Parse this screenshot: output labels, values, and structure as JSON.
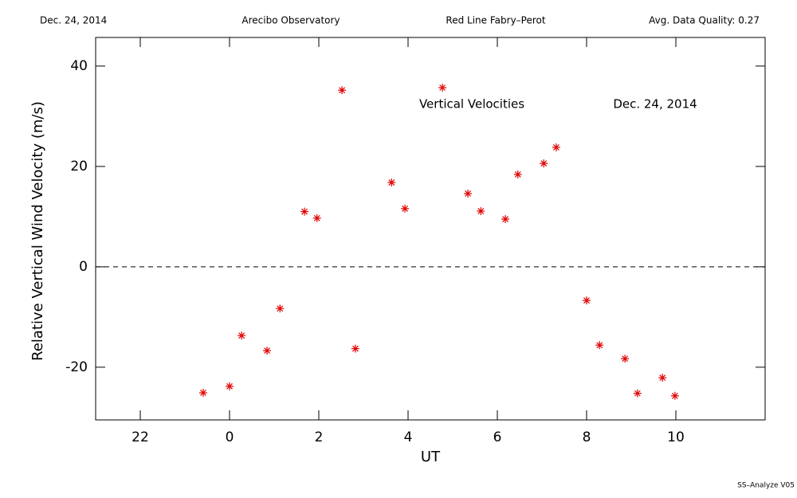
{
  "chart_data": {
    "type": "scatter",
    "header": [
      "Dec. 24, 2014",
      "Arecibo Observatory",
      "Red Line Fabry–Perot",
      "Avg. Data Quality: 0.27"
    ],
    "annotations": [
      "Vertical Velocities",
      "Dec. 24, 2014"
    ],
    "footer": "SS–Analyze V05",
    "xlabel": "UT",
    "ylabel": "Relative Vertical Wind Velocity (m/s)",
    "xlim": [
      -3,
      12
    ],
    "ylim": [
      -30.5,
      45.7
    ],
    "xticks": [
      {
        "value": -2,
        "label": "22"
      },
      0,
      2,
      4,
      6,
      8,
      10
    ],
    "yticks": [
      -20,
      0,
      20,
      40
    ],
    "reference_line": 0,
    "color": "#e00000",
    "x": [
      -0.59,
      0,
      0.27,
      0.84,
      1.13,
      1.68,
      1.96,
      2.52,
      2.82,
      3.63,
      3.93,
      4.77,
      5.34,
      5.63,
      6.18,
      6.46,
      7.04,
      7.32,
      8.0,
      8.29,
      8.86,
      9.14,
      9.7,
      9.98
    ],
    "values": [
      -25.1,
      -23.8,
      -13.7,
      -16.7,
      -8.3,
      11.0,
      9.7,
      35.2,
      -16.3,
      16.8,
      11.6,
      35.7,
      14.6,
      11.1,
      9.5,
      18.4,
      20.6,
      23.8,
      -6.7,
      -15.6,
      -18.3,
      -25.2,
      -22.1,
      -25.7
    ]
  }
}
